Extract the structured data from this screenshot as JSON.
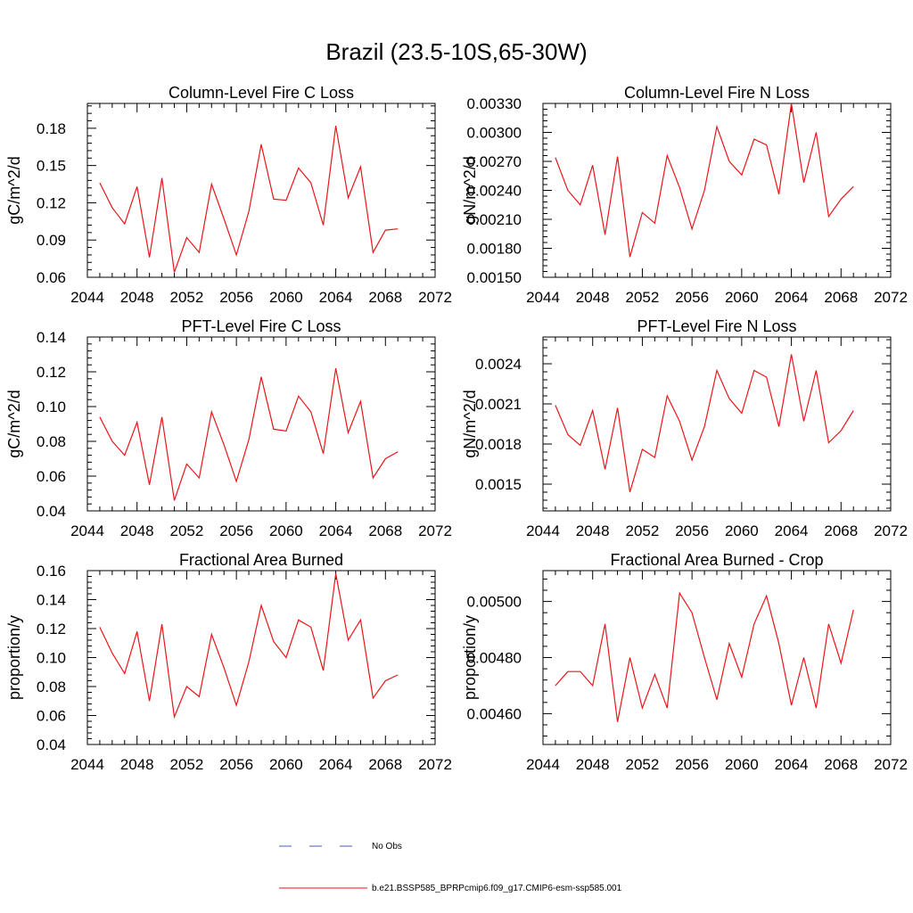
{
  "figure": {
    "title": "Brazil (23.5-10S,65-30W)",
    "legend": [
      {
        "label": "No Obs",
        "style": "dashed",
        "color": "#4a5bb0"
      },
      {
        "label": "b.e21.BSSP585_BPRPcmip6.f09_g17.CMIP6-esm-ssp585.001",
        "style": "solid",
        "color": "#e8161b"
      }
    ]
  },
  "chart_data": [
    {
      "type": "line",
      "title": "Column-Level Fire C Loss",
      "ylabel": "gC/m^2/d",
      "xlim": [
        2044,
        2072
      ],
      "xticks": [
        "2044",
        "2048",
        "2052",
        "2056",
        "2060",
        "2064",
        "2068",
        "2072"
      ],
      "ylim": [
        0.06,
        0.2
      ],
      "yticks": [
        "0.06",
        "0.09",
        "0.12",
        "0.15",
        "0.18"
      ],
      "x": [
        2045,
        2046,
        2047,
        2048,
        2049,
        2050,
        2051,
        2052,
        2053,
        2054,
        2055,
        2056,
        2057,
        2058,
        2059,
        2060,
        2061,
        2062,
        2063,
        2064,
        2065,
        2066,
        2067,
        2068,
        2069
      ],
      "series": [
        {
          "color": "#e8161b",
          "values": [
            0.136,
            0.116,
            0.103,
            0.133,
            0.076,
            0.14,
            0.064,
            0.092,
            0.08,
            0.135,
            0.107,
            0.078,
            0.113,
            0.167,
            0.123,
            0.122,
            0.148,
            0.136,
            0.102,
            0.182,
            0.124,
            0.149,
            0.08,
            0.098,
            0.099
          ]
        }
      ]
    },
    {
      "type": "line",
      "title": "Column-Level Fire N Loss",
      "ylabel": "gN/m^2/d",
      "xlim": [
        2044,
        2072
      ],
      "xticks": [
        "2044",
        "2048",
        "2052",
        "2056",
        "2060",
        "2064",
        "2068",
        "2072"
      ],
      "ylim": [
        0.0015,
        0.0033
      ],
      "yticks": [
        "0.00150",
        "0.00180",
        "0.00210",
        "0.00240",
        "0.00270",
        "0.00300",
        "0.00330"
      ],
      "x": [
        2045,
        2046,
        2047,
        2048,
        2049,
        2050,
        2051,
        2052,
        2053,
        2054,
        2055,
        2056,
        2057,
        2058,
        2059,
        2060,
        2061,
        2062,
        2063,
        2064,
        2065,
        2066,
        2067,
        2068,
        2069
      ],
      "series": [
        {
          "color": "#e8161b",
          "values": [
            0.00274,
            0.0024,
            0.00225,
            0.00266,
            0.00194,
            0.00275,
            0.00171,
            0.00217,
            0.00206,
            0.00276,
            0.00243,
            0.002,
            0.0024,
            0.00306,
            0.0027,
            0.00256,
            0.00293,
            0.00287,
            0.00236,
            0.0033,
            0.00248,
            0.003,
            0.00213,
            0.00231,
            0.00244
          ]
        }
      ]
    },
    {
      "type": "line",
      "title": "PFT-Level Fire C Loss",
      "ylabel": "gC/m^2/d",
      "xlim": [
        2044,
        2072
      ],
      "xticks": [
        "2044",
        "2048",
        "2052",
        "2056",
        "2060",
        "2064",
        "2068",
        "2072"
      ],
      "ylim": [
        0.04,
        0.14
      ],
      "yticks": [
        "0.04",
        "0.06",
        "0.08",
        "0.10",
        "0.12",
        "0.14"
      ],
      "x": [
        2045,
        2046,
        2047,
        2048,
        2049,
        2050,
        2051,
        2052,
        2053,
        2054,
        2055,
        2056,
        2057,
        2058,
        2059,
        2060,
        2061,
        2062,
        2063,
        2064,
        2065,
        2066,
        2067,
        2068,
        2069
      ],
      "series": [
        {
          "color": "#e8161b",
          "values": [
            0.094,
            0.08,
            0.072,
            0.091,
            0.055,
            0.094,
            0.046,
            0.067,
            0.059,
            0.097,
            0.078,
            0.057,
            0.081,
            0.117,
            0.087,
            0.086,
            0.106,
            0.097,
            0.073,
            0.122,
            0.085,
            0.103,
            0.059,
            0.07,
            0.074
          ]
        }
      ]
    },
    {
      "type": "line",
      "title": "PFT-Level Fire N Loss",
      "ylabel": "gN/m^2/d",
      "xlim": [
        2044,
        2072
      ],
      "xticks": [
        "2044",
        "2048",
        "2052",
        "2056",
        "2060",
        "2064",
        "2068",
        "2072"
      ],
      "ylim": [
        0.0013,
        0.0026
      ],
      "yticks": [
        "0.0015",
        "0.0018",
        "0.0021",
        "0.0024"
      ],
      "x": [
        2045,
        2046,
        2047,
        2048,
        2049,
        2050,
        2051,
        2052,
        2053,
        2054,
        2055,
        2056,
        2057,
        2058,
        2059,
        2060,
        2061,
        2062,
        2063,
        2064,
        2065,
        2066,
        2067,
        2068,
        2069
      ],
      "series": [
        {
          "color": "#e8161b",
          "values": [
            0.00209,
            0.00187,
            0.00179,
            0.00205,
            0.00161,
            0.00207,
            0.00144,
            0.00176,
            0.0017,
            0.00216,
            0.00197,
            0.00168,
            0.00193,
            0.00235,
            0.00214,
            0.00203,
            0.00235,
            0.0023,
            0.00193,
            0.00247,
            0.00197,
            0.00235,
            0.00181,
            0.0019,
            0.00205
          ]
        }
      ]
    },
    {
      "type": "line",
      "title": "Fractional Area Burned",
      "ylabel": "proportion/y",
      "xlim": [
        2044,
        2072
      ],
      "xticks": [
        "2044",
        "2048",
        "2052",
        "2056",
        "2060",
        "2064",
        "2068",
        "2072"
      ],
      "ylim": [
        0.04,
        0.16
      ],
      "yticks": [
        "0.04",
        "0.06",
        "0.08",
        "0.10",
        "0.12",
        "0.14",
        "0.16"
      ],
      "x": [
        2045,
        2046,
        2047,
        2048,
        2049,
        2050,
        2051,
        2052,
        2053,
        2054,
        2055,
        2056,
        2057,
        2058,
        2059,
        2060,
        2061,
        2062,
        2063,
        2064,
        2065,
        2066,
        2067,
        2068,
        2069
      ],
      "series": [
        {
          "color": "#e8161b",
          "values": [
            0.121,
            0.103,
            0.089,
            0.118,
            0.07,
            0.123,
            0.059,
            0.08,
            0.073,
            0.116,
            0.093,
            0.067,
            0.097,
            0.136,
            0.111,
            0.1,
            0.126,
            0.121,
            0.091,
            0.158,
            0.112,
            0.126,
            0.072,
            0.084,
            0.088
          ]
        }
      ]
    },
    {
      "type": "line",
      "title": "Fractional Area Burned - Crop",
      "ylabel": "proportion/y",
      "xlim": [
        2044,
        2072
      ],
      "xticks": [
        "2044",
        "2048",
        "2052",
        "2056",
        "2060",
        "2064",
        "2068",
        "2072"
      ],
      "ylim": [
        0.00449,
        0.00511
      ],
      "yticks": [
        "0.00460",
        "0.00480",
        "0.00500"
      ],
      "x": [
        2045,
        2046,
        2047,
        2048,
        2049,
        2050,
        2051,
        2052,
        2053,
        2054,
        2055,
        2056,
        2057,
        2058,
        2059,
        2060,
        2061,
        2062,
        2063,
        2064,
        2065,
        2066,
        2067,
        2068,
        2069
      ],
      "series": [
        {
          "color": "#e8161b",
          "values": [
            0.0047,
            0.00475,
            0.00475,
            0.0047,
            0.00492,
            0.00457,
            0.0048,
            0.00462,
            0.00474,
            0.00462,
            0.00503,
            0.00496,
            0.0048,
            0.00465,
            0.00485,
            0.00473,
            0.00492,
            0.00502,
            0.00485,
            0.00463,
            0.0048,
            0.00462,
            0.00492,
            0.00478,
            0.00497
          ]
        }
      ]
    }
  ]
}
